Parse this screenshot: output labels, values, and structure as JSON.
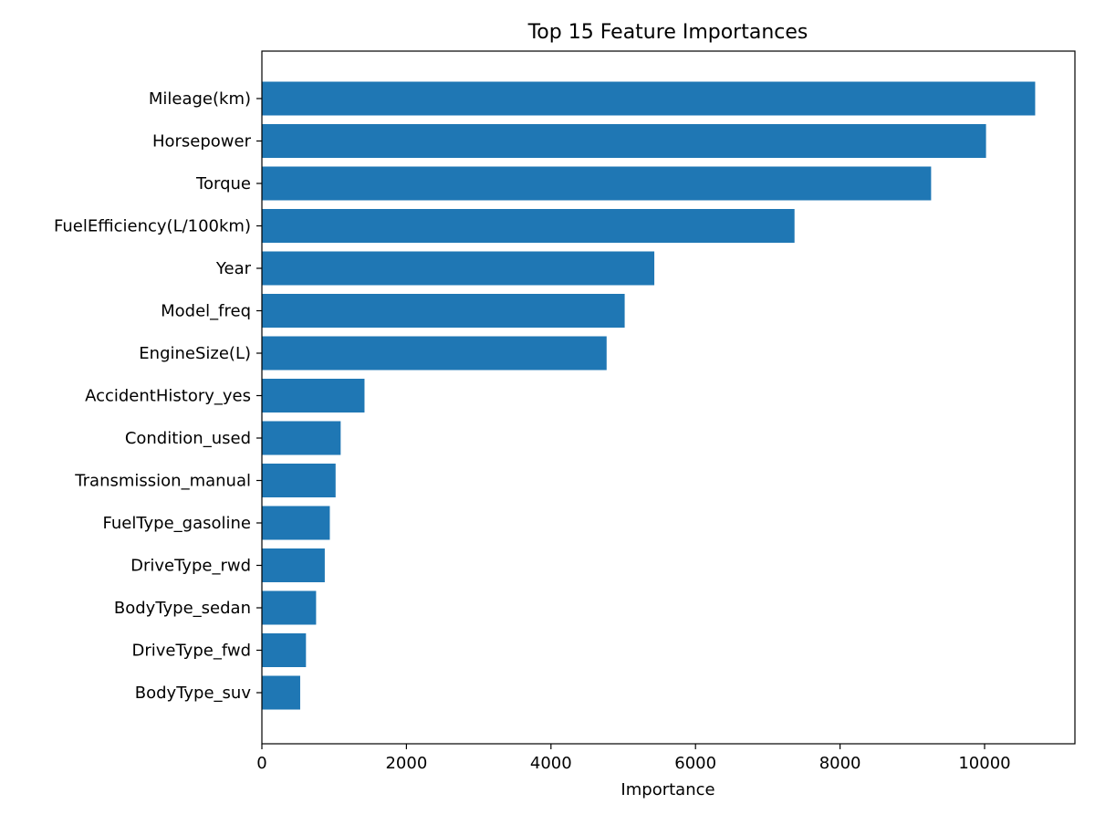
{
  "chart_data": {
    "type": "bar",
    "orientation": "horizontal",
    "title": "Top 15 Feature Importances",
    "xlabel": "Importance",
    "ylabel": "",
    "xlim": [
      0,
      11250
    ],
    "xticks": [
      0,
      2000,
      4000,
      6000,
      8000,
      10000
    ],
    "grid": false,
    "legend": "none",
    "bar_color": "#1f77b4",
    "categories": [
      "Mileage(km)",
      "Horsepower",
      "Torque",
      "FuelEfficiency(L/100km)",
      "Year",
      "Model_freq",
      "EngineSize(L)",
      "AccidentHistory_yes",
      "Condition_used",
      "Transmission_manual",
      "FuelType_gasoline",
      "DriveType_rwd",
      "BodyType_sedan",
      "DriveType_fwd",
      "BodyType_suv"
    ],
    "values": [
      10700,
      10020,
      9260,
      7370,
      5430,
      5020,
      4770,
      1420,
      1090,
      1020,
      940,
      870,
      750,
      610,
      530
    ]
  }
}
